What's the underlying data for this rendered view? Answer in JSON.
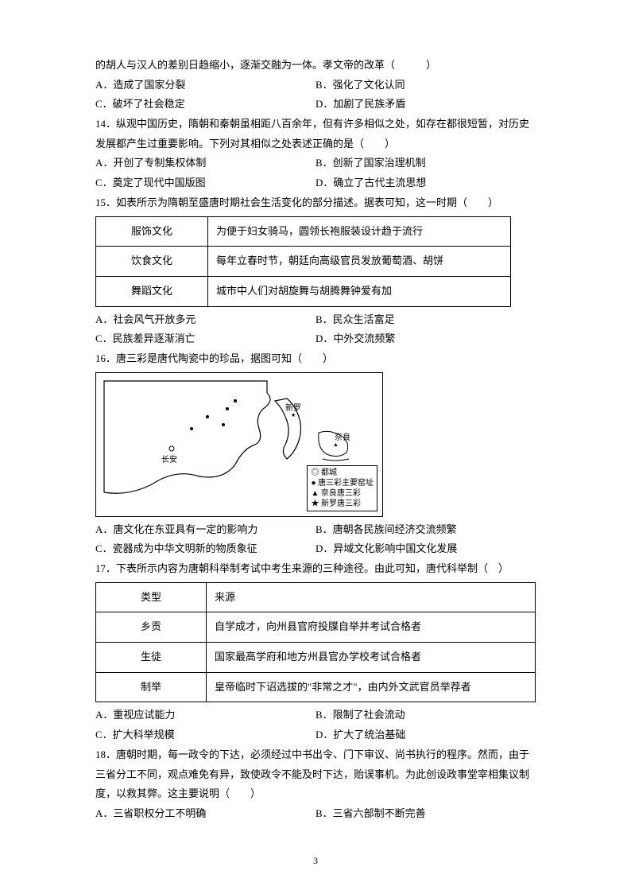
{
  "q13": {
    "stem_cont": "的胡人与汉人的差别日趋缩小，逐渐交融为一体。孝文帝的改革（　　　）",
    "A": "A．造成了国家分裂",
    "B": "B．强化了文化认同",
    "C": "C．破坏了社会稳定",
    "D": "D．加剧了民族矛盾"
  },
  "q14": {
    "stem": "14．纵观中国历史，隋朝和秦朝虽相距八百余年，但有许多相似之处，如存在都很短暂，对历史发展都产生过重要影响。下列对其相似之处表述正确的是（　　）",
    "A": "A．开创了专制集权体制",
    "B": "B．创新了国家治理机制",
    "C": "C．奠定了现代中国版图",
    "D": "D．确立了古代主流思想"
  },
  "q15": {
    "stem": "15．如表所示为隋朝至盛唐时期社会生活变化的部分描述。据表可知，这一时期（　　）",
    "table": {
      "rows": [
        [
          "服饰文化",
          "为便于妇女骑马，圆领长袍服装设计趋于流行"
        ],
        [
          "饮食文化",
          "每年立春时节，朝廷向高级官员发放葡萄酒、胡饼"
        ],
        [
          "舞蹈文化",
          "城市中人们对胡旋舞与胡腾舞钟爱有加"
        ]
      ],
      "col_widths": [
        "120px",
        "360px"
      ]
    },
    "A": "A．社会风气开放多元",
    "B": "B．民众生活富足",
    "C": "C．民族差异逐渐消亡",
    "D": "D．中外交流频繁"
  },
  "q16": {
    "stem": "16．唐三彩是唐代陶瓷中的珍品，据图可知（　　）",
    "map": {
      "labels": {
        "changan": "长安",
        "xinluo": "新罗",
        "nara": "奈良"
      },
      "legend": [
        "◎ 都城",
        "● 唐三彩主要窑址",
        "▲ 奈良唐三彩",
        "★ 新罗唐三彩"
      ],
      "colors": {
        "stroke": "#000000",
        "bg": "#ffffff"
      }
    },
    "A": "A．唐文化在东亚具有一定的影响力",
    "B": "B．唐朝各民族间经济交流频繁",
    "C": "C．瓷器成为中华文明新的物质象征",
    "D": "D．异域文化影响中国文化发展"
  },
  "q17": {
    "stem": "17．下表所示内容为唐朝科举制考试中考生来源的三种途径。由此可知，唐代科举制（　）",
    "table": {
      "header": [
        "类型",
        "来源"
      ],
      "rows": [
        [
          "乡贡",
          "自学成才，向州县官府投牒自举并考试合格者"
        ],
        [
          "生徒",
          "国家最高学府和地方州县官办学校考试合格者"
        ],
        [
          "制举",
          "皇帝临时下诏选拔的\"非常之才\"，由内外文武官员举荐者"
        ]
      ],
      "col_widths": [
        "120px",
        "400px"
      ]
    },
    "A": "A．重视应试能力",
    "B": "B．限制了社会流动",
    "C": "C．扩大科举规模",
    "D": "D．扩大了统治基础"
  },
  "q18": {
    "stem": "18．唐朝时期，每一政令的下达，必须经过中书出令、门下审议、尚书执行的程序。然而，由于三省分工不同，观点难免有异，致使政令不能及时下达，贻误事机。为此创设政事堂宰相集议制度，以救其弊。这主要说明（　　）",
    "A": "A．三省职权分工不明确",
    "B": "B．三省六部制不断完善"
  },
  "page_number": "3"
}
